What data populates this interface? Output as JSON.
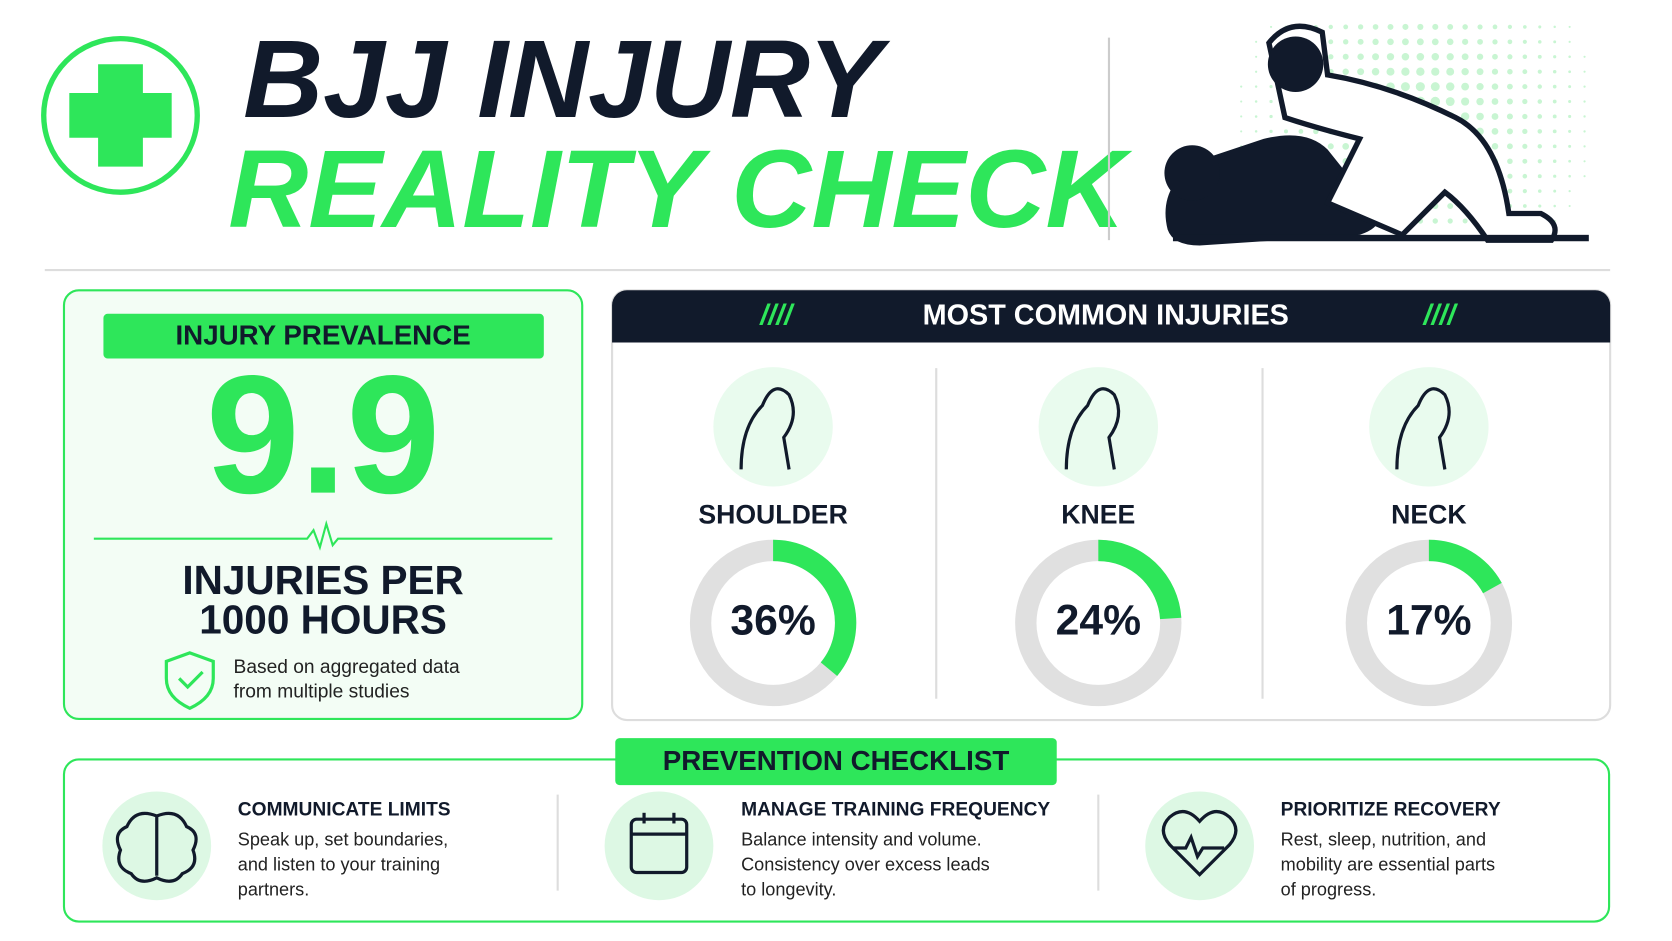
{
  "header": {
    "title_line1": "BJJ INJURY",
    "title_line2": "REALITY CHECK"
  },
  "prevalence": {
    "heading": "INJURY PREVALENCE",
    "value": 9.9,
    "unit_lines": [
      "INJURIES PER",
      "1000 HOURS"
    ],
    "note_lines": [
      "Based on aggregated data",
      "from multiple studies"
    ]
  },
  "injuries": {
    "heading": "MOST COMMON INJURIES",
    "deco": "////",
    "items": [
      {
        "name": "SHOULDER",
        "value": 36,
        "label": "36%"
      },
      {
        "name": "KNEE",
        "value": 24,
        "label": "24%"
      },
      {
        "name": "NECK",
        "value": 17,
        "label": "17%"
      }
    ]
  },
  "checklist": {
    "heading": "PREVENTION CHECKLIST",
    "items": [
      {
        "title": "COMMUNICATE LIMITS",
        "lines": [
          "Speak up, set boundaries,",
          "and listen to your training",
          "partners."
        ]
      },
      {
        "title": "MANAGE TRAINING FREQUENCY",
        "lines": [
          "Balance intensity and volume.",
          "Consistency over excess leads",
          "to longevity."
        ]
      },
      {
        "title": "PRIORITIZE RECOVERY",
        "lines": [
          "Rest, sleep, nutrition, and",
          "mobility are essential parts",
          "of progress."
        ]
      }
    ]
  }
}
